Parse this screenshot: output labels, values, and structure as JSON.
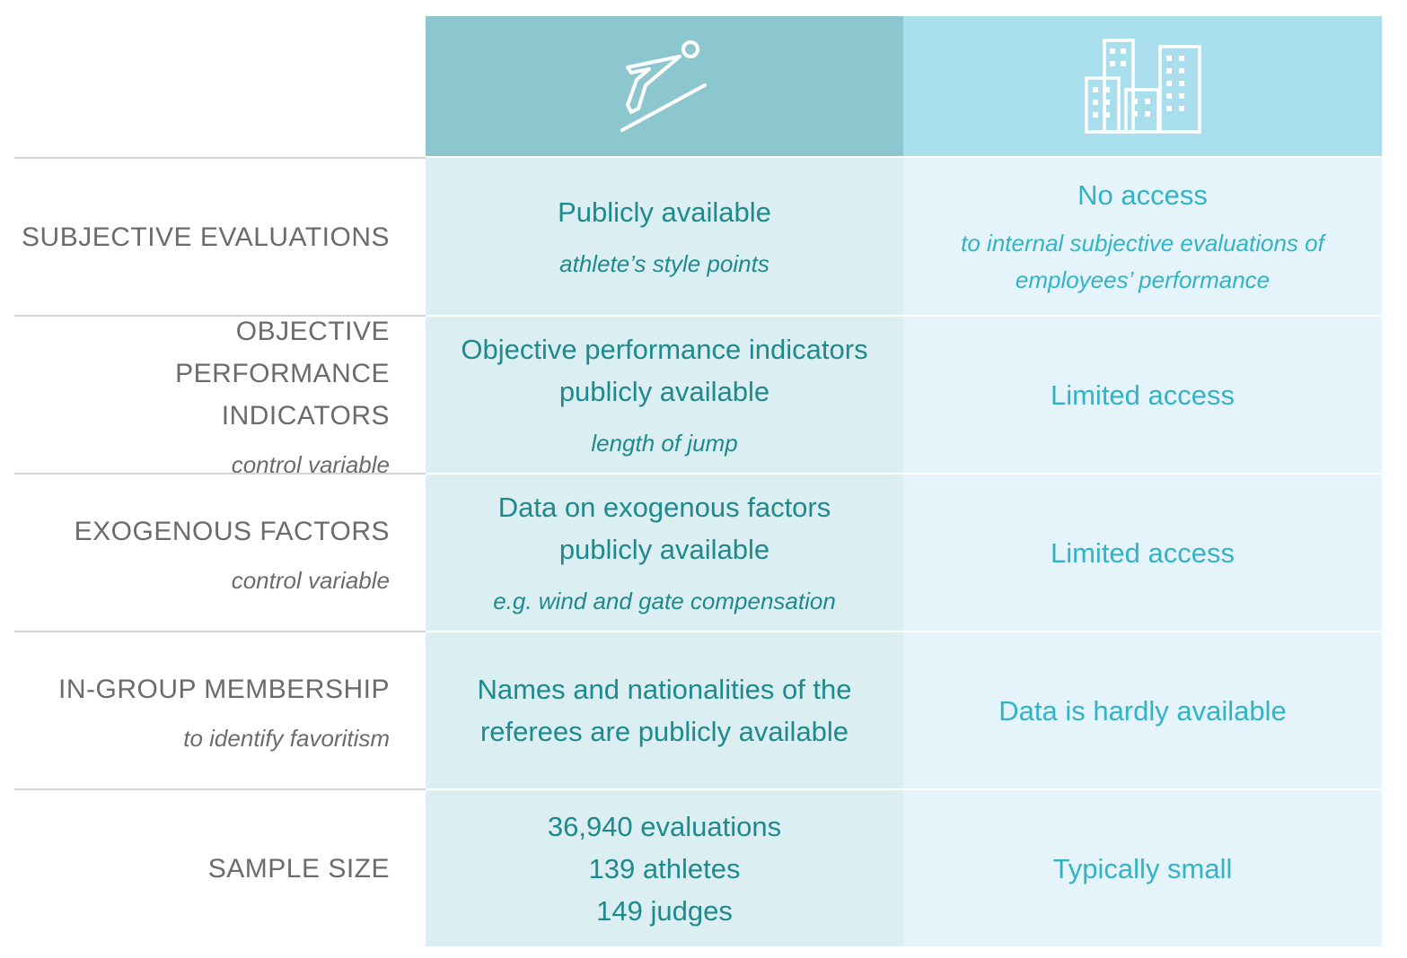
{
  "header": {
    "col1_icon": "ski-jumper-icon",
    "col2_icon": "office-buildings-icon",
    "colors": {
      "col1_bg": "#8cc6cf",
      "col2_bg": "#a9deed"
    }
  },
  "rows": [
    {
      "label": "SUBJECTIVE EVALUATIONS",
      "label_sub": "",
      "col1": "Publicly available",
      "col1_sub": "athlete’s style points",
      "col2": "No access",
      "col2_sub": "to internal subjective evaluations of employees’ performance"
    },
    {
      "label": "OBJECTIVE PERFORMANCE INDICATORS",
      "label_sub": "control variable",
      "col1": "Objective performance indicators publicly available",
      "col1_sub": "length of jump",
      "col2": "Limited access",
      "col2_sub": ""
    },
    {
      "label": "EXOGENOUS FACTORS",
      "label_sub": "control variable",
      "col1": "Data on exogenous factors publicly available",
      "col1_sub": "e.g. wind and gate compensation",
      "col2": "Limited access",
      "col2_sub": ""
    },
    {
      "label": "IN-GROUP MEMBERSHIP",
      "label_sub": "to identify favoritism",
      "col1": "Names and nationalities of the referees are publicly available",
      "col1_sub": "",
      "col2": "Data is hardly available",
      "col2_sub": ""
    },
    {
      "label": "SAMPLE SIZE",
      "label_sub": "",
      "col1_lines": [
        "36,940 evaluations",
        "139 athletes",
        "149 judges"
      ],
      "col2": "Typically small",
      "col2_sub": ""
    }
  ]
}
